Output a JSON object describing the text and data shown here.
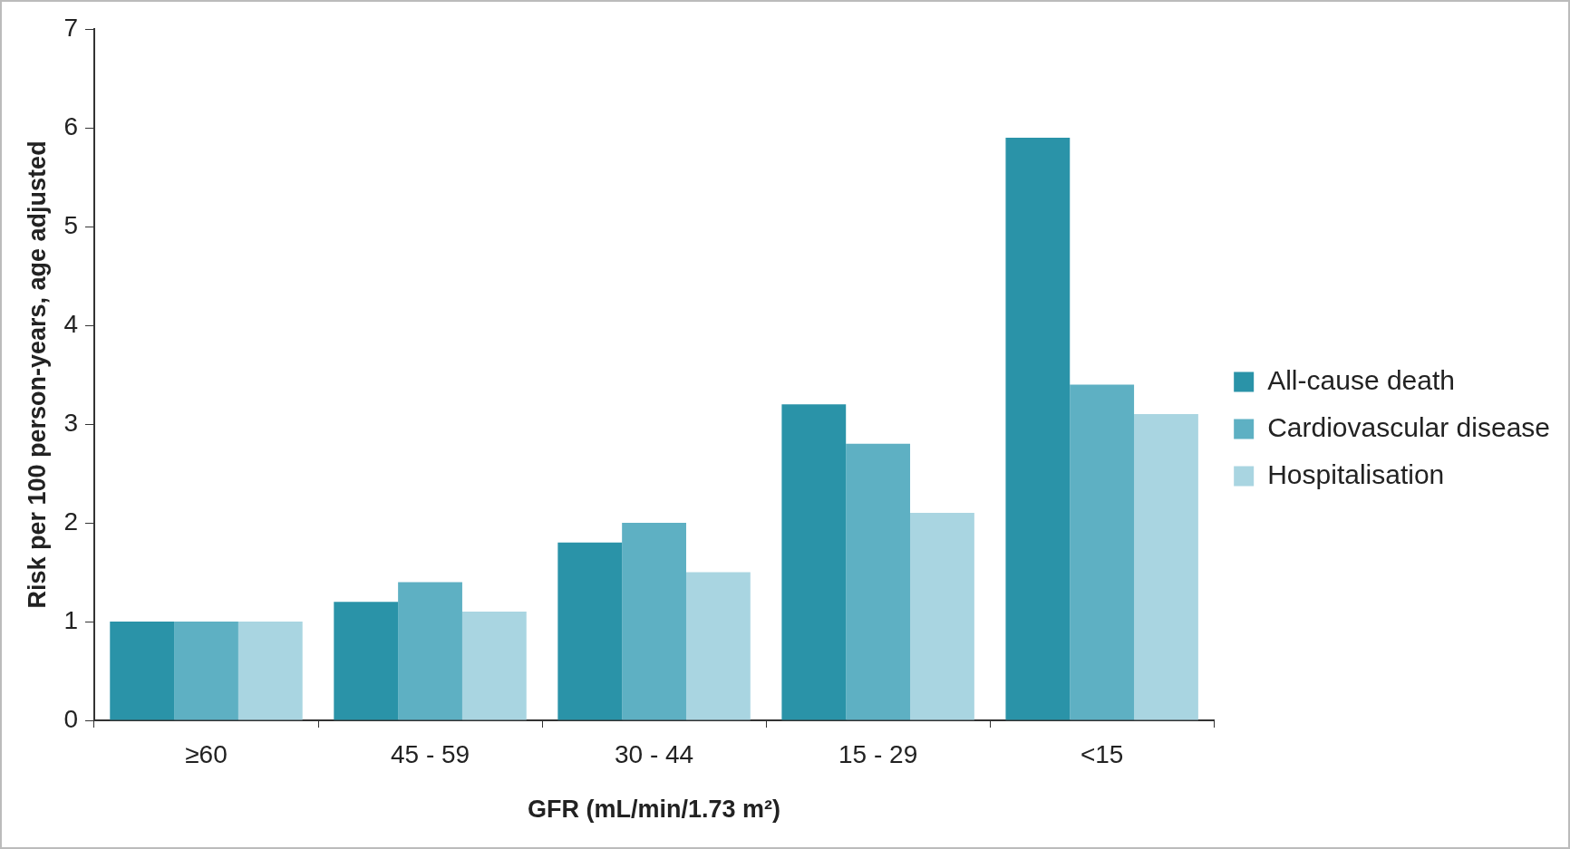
{
  "chart_data": {
    "type": "bar",
    "xlabel": "GFR (mL/min/1.73 m²)",
    "ylabel": "Risk per 100 person-years, age adjusted",
    "categories": [
      "≥60",
      "45 - 59",
      "30 - 44",
      "15 - 29",
      "<15"
    ],
    "series": [
      {
        "name": "All-cause death",
        "color": "#2a93a8",
        "values": [
          1.0,
          1.2,
          1.8,
          3.2,
          5.9
        ]
      },
      {
        "name": "Cardiovascular disease",
        "color": "#5eb0c3",
        "values": [
          1.0,
          1.4,
          2.0,
          2.8,
          3.4
        ]
      },
      {
        "name": "Hospitalisation",
        "color": "#a9d5e1",
        "values": [
          1.0,
          1.1,
          1.5,
          2.1,
          3.1
        ]
      }
    ],
    "ylim": [
      0,
      7
    ],
    "yticks": [
      0,
      1,
      2,
      3,
      4,
      5,
      6,
      7
    ],
    "grid": false,
    "legend": "right"
  }
}
